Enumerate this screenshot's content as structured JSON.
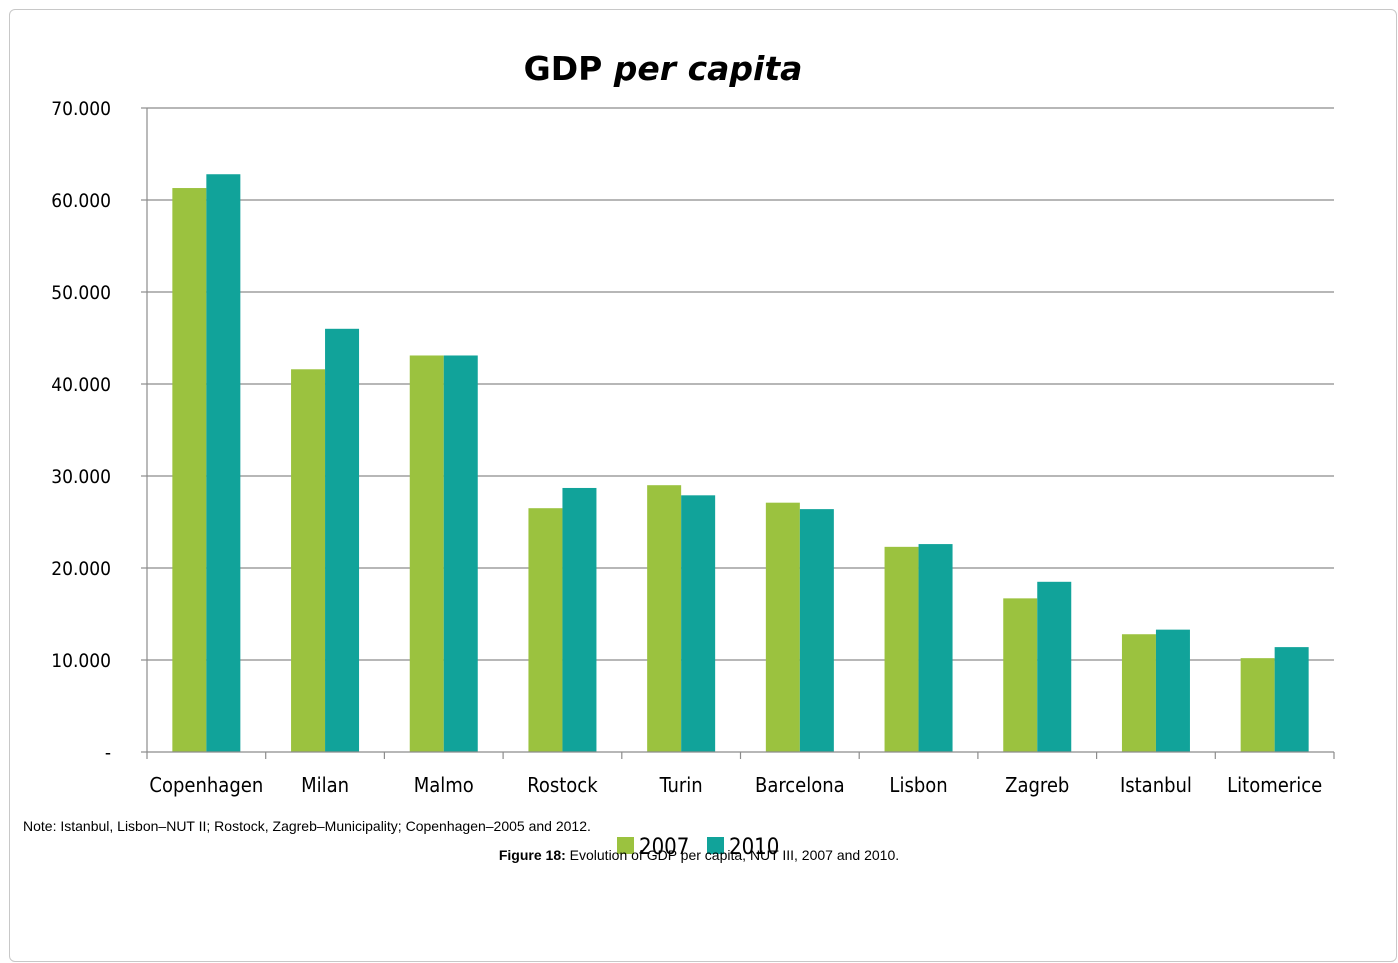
{
  "chart_data": {
    "type": "bar",
    "title": "GDP",
    "title_italic": "per capita",
    "categories": [
      "Copenhagen",
      "Milan",
      "Malmo",
      "Rostock",
      "Turin",
      "Barcelona",
      "Lisbon",
      "Zagreb",
      "Istanbul",
      "Litomerice"
    ],
    "series": [
      {
        "name": "2007",
        "color": "#9bc23f",
        "values": [
          61300,
          41600,
          43100,
          26500,
          29000,
          27100,
          22300,
          16700,
          12800,
          10200
        ]
      },
      {
        "name": "2010",
        "color": "#11a39a",
        "values": [
          62800,
          46000,
          43100,
          28700,
          27900,
          26400,
          22600,
          18500,
          13300,
          11400
        ]
      }
    ],
    "ylim": [
      0,
      70000
    ],
    "yticks": [
      0,
      10000,
      20000,
      30000,
      40000,
      50000,
      60000,
      70000
    ],
    "ytick_labels": [
      "-",
      "10.000",
      "20.000",
      "30.000",
      "40.000",
      "50.000",
      "60.000",
      "70.000"
    ],
    "grid": true,
    "legend_position": "bottom"
  },
  "note": "Note: Istanbul, Lisbon–NUT II; Rostock, Zagreb–Municipality; Copenhagen–2005 and 2012.",
  "caption": {
    "label": "Figure 18:",
    "text": " Evolution of GDP per capita, NUT III, 2007 and 2010."
  }
}
